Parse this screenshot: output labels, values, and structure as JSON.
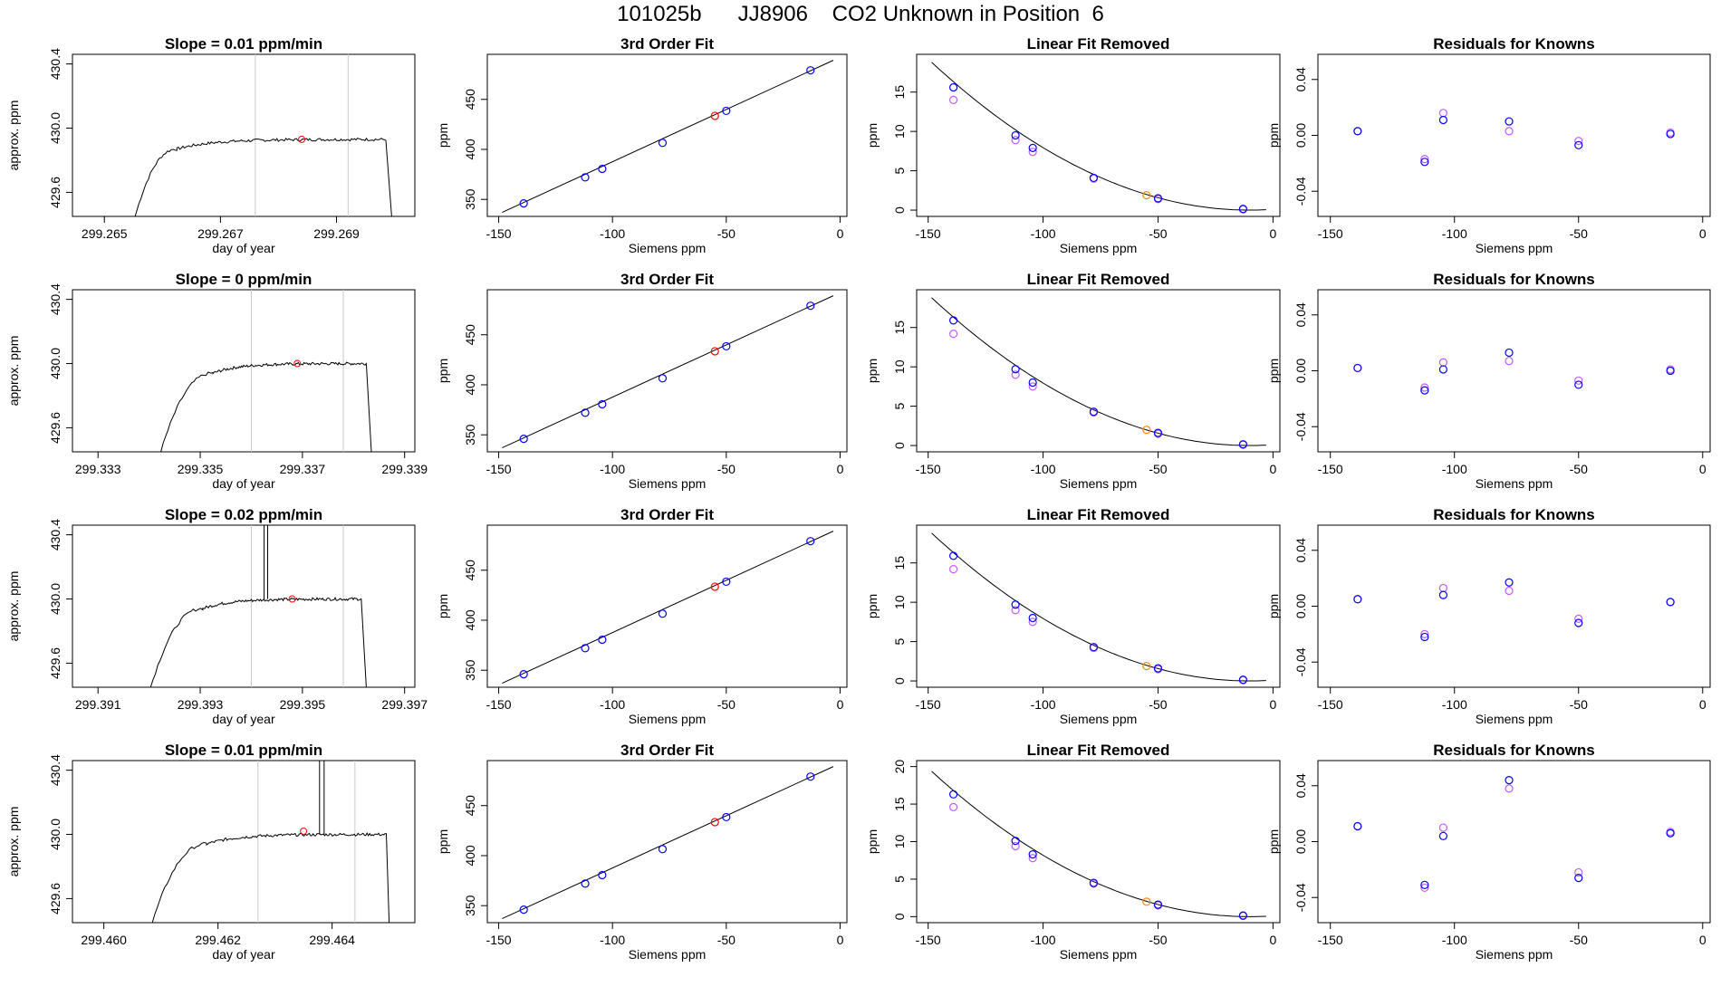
{
  "page_title": "101025b      JJ8906    CO2 Unknown in Position  6",
  "colors": {
    "line": "#000000",
    "grid": "#c8c8c8",
    "blue": "#0000ff",
    "violet": "#c45bff",
    "red": "#ff0000",
    "orange": "#ff8800"
  },
  "chart_data": [
    {
      "type": "line",
      "row": 0,
      "title": "Slope =  0.01  ppm/min",
      "xlabel": "day of year",
      "ylabel": "approx. ppm",
      "xlim": [
        299.26445,
        299.27035
      ],
      "ylim": [
        429.45,
        430.46
      ],
      "xticks": [
        299.265,
        299.267,
        299.269
      ],
      "xtick_labels": [
        "299.265",
        "299.267",
        "299.269"
      ],
      "yticks": [
        429.6,
        430.0,
        430.4
      ],
      "ytick_labels": [
        "429.6",
        "430.0",
        "430.4"
      ],
      "vlines": [
        299.2676,
        299.2692
      ],
      "rise": {
        "x0": 299.26553,
        "x1": 299.26625
      },
      "plateau": {
        "x0": 299.26625,
        "x1": 299.26985,
        "y": 429.93
      },
      "fall_x": 299.26995,
      "spikes": [],
      "marker": {
        "x": 299.2684,
        "y": 429.93
      }
    },
    {
      "type": "line",
      "row": 1,
      "title": "Slope =  0  ppm/min",
      "xlabel": "day of year",
      "ylabel": "approx. ppm",
      "xlim": [
        299.3325,
        299.3392
      ],
      "ylim": [
        429.45,
        430.46
      ],
      "xticks": [
        299.333,
        299.335,
        299.337,
        299.339
      ],
      "xtick_labels": [
        "299.333",
        "299.335",
        "299.337",
        "299.339"
      ],
      "vlines": [
        299.336,
        299.3378
      ],
      "yticks": [
        429.6,
        430.0,
        430.4
      ],
      "ytick_labels": [
        "429.6",
        "430.0",
        "430.4"
      ],
      "rise": {
        "x0": 299.33423,
        "x1": 299.33525
      },
      "plateau": {
        "x0": 299.33525,
        "x1": 299.33825,
        "y": 430.0
      },
      "fall_x": 299.33835,
      "spikes": [],
      "marker": {
        "x": 299.3369,
        "y": 430.0
      }
    },
    {
      "type": "line",
      "row": 2,
      "title": "Slope =  0.02  ppm/min",
      "xlabel": "day of year",
      "ylabel": "approx. ppm",
      "xlim": [
        299.3905,
        299.3972
      ],
      "ylim": [
        429.45,
        430.46
      ],
      "xticks": [
        299.391,
        299.393,
        299.395,
        299.397
      ],
      "xtick_labels": [
        "299.391",
        "299.393",
        "299.395",
        "299.397"
      ],
      "vlines": [
        299.394,
        299.3958
      ],
      "yticks": [
        429.6,
        430.0,
        430.4
      ],
      "ytick_labels": [
        "429.6",
        "430.0",
        "430.4"
      ],
      "rise": {
        "x0": 299.39203,
        "x1": 299.39305
      },
      "plateau": {
        "x0": 299.39305,
        "x1": 299.39615,
        "y": 430.0
      },
      "fall_x": 299.39625,
      "spikes": [
        299.39425,
        299.39432
      ],
      "marker": {
        "x": 299.3948,
        "y": 430.0
      }
    },
    {
      "type": "line",
      "row": 3,
      "title": "Slope =  0.01  ppm/min",
      "xlabel": "day of year",
      "ylabel": "approx. ppm",
      "xlim": [
        299.45945,
        299.46545
      ],
      "ylim": [
        429.45,
        430.46
      ],
      "xticks": [
        299.46,
        299.462,
        299.464
      ],
      "xtick_labels": [
        "299.460",
        "299.462",
        "299.464"
      ],
      "vlines": [
        299.4627,
        299.4644
      ],
      "yticks": [
        429.6,
        430.0,
        430.4
      ],
      "ytick_labels": [
        "429.6",
        "430.0",
        "430.4"
      ],
      "rise": {
        "x0": 299.46085,
        "x1": 299.4618
      },
      "plateau": {
        "x0": 299.4618,
        "x1": 299.46495,
        "y": 430.0
      },
      "fall_x": 299.465,
      "spikes": [
        299.46378,
        299.46386
      ],
      "marker": {
        "x": 299.4635,
        "y": 430.02
      }
    },
    {
      "type": "scatter",
      "row": 0,
      "title": "3rd Order Fit",
      "xlabel": "Siemens ppm",
      "ylabel": "ppm",
      "xlim": [
        -155,
        3
      ],
      "ylim": [
        333,
        495
      ],
      "xticks": [
        -150,
        -100,
        -50,
        0
      ],
      "xtick_labels": [
        "-150",
        "-100",
        "-50",
        "0"
      ],
      "yticks": [
        350,
        400,
        450
      ],
      "ytick_labels": [
        "350",
        "400",
        "450"
      ],
      "fit_line": [
        [
          -148.5,
          337
        ],
        [
          -3,
          489
        ]
      ],
      "points": [
        [
          -139,
          346
        ],
        [
          -112,
          372
        ],
        [
          -104.5,
          380.5
        ],
        [
          -78,
          406.5
        ],
        [
          -50,
          438.5
        ],
        [
          -13,
          479
        ]
      ],
      "unknown": [
        -55,
        433.5
      ]
    },
    {
      "type": "scatter",
      "row": 1,
      "title": "3rd Order Fit",
      "xlabel": "Siemens ppm",
      "ylabel": "ppm",
      "xlim": [
        -155,
        3
      ],
      "ylim": [
        333,
        495
      ],
      "xticks": [
        -150,
        -100,
        -50,
        0
      ],
      "xtick_labels": [
        "-150",
        "-100",
        "-50",
        "0"
      ],
      "yticks": [
        350,
        400,
        450
      ],
      "ytick_labels": [
        "350",
        "400",
        "450"
      ],
      "fit_line": [
        [
          -148.5,
          337
        ],
        [
          -3,
          489
        ]
      ],
      "points": [
        [
          -139,
          346
        ],
        [
          -112,
          372
        ],
        [
          -104.5,
          380.5
        ],
        [
          -78,
          406.5
        ],
        [
          -50,
          438.5
        ],
        [
          -13,
          479
        ]
      ],
      "unknown": [
        -55,
        433.5
      ]
    },
    {
      "type": "scatter",
      "row": 2,
      "title": "3rd Order Fit",
      "xlabel": "Siemens ppm",
      "ylabel": "ppm",
      "xlim": [
        -155,
        3
      ],
      "ylim": [
        333,
        495
      ],
      "xticks": [
        -150,
        -100,
        -50,
        0
      ],
      "xtick_labels": [
        "-150",
        "-100",
        "-50",
        "0"
      ],
      "yticks": [
        350,
        400,
        450
      ],
      "ytick_labels": [
        "350",
        "400",
        "450"
      ],
      "fit_line": [
        [
          -148.5,
          337
        ],
        [
          -3,
          489
        ]
      ],
      "points": [
        [
          -139,
          346
        ],
        [
          -112,
          372
        ],
        [
          -104.5,
          380.5
        ],
        [
          -78,
          406.5
        ],
        [
          -50,
          438.5
        ],
        [
          -13,
          479
        ]
      ],
      "unknown": [
        -55,
        433.5
      ]
    },
    {
      "type": "scatter",
      "row": 3,
      "title": "3rd Order Fit",
      "xlabel": "Siemens ppm",
      "ylabel": "ppm",
      "xlim": [
        -155,
        3
      ],
      "ylim": [
        333,
        495
      ],
      "xticks": [
        -150,
        -100,
        -50,
        0
      ],
      "xtick_labels": [
        "-150",
        "-100",
        "-50",
        "0"
      ],
      "yticks": [
        350,
        400,
        450
      ],
      "ytick_labels": [
        "350",
        "400",
        "450"
      ],
      "fit_line": [
        [
          -148.5,
          337
        ],
        [
          -3,
          489
        ]
      ],
      "points": [
        [
          -139,
          346
        ],
        [
          -112,
          372
        ],
        [
          -104.5,
          380.5
        ],
        [
          -78,
          406.5
        ],
        [
          -50,
          438.5
        ],
        [
          -13,
          479
        ]
      ],
      "unknown": [
        -55,
        433.5
      ]
    },
    {
      "type": "scatter",
      "row": 0,
      "title": "Linear Fit Removed",
      "xlabel": "Siemens ppm",
      "ylabel": "ppm",
      "xlim": [
        -155,
        3
      ],
      "ylim": [
        -0.8,
        19.8
      ],
      "xticks": [
        -150,
        -100,
        -50,
        0
      ],
      "xtick_labels": [
        "-150",
        "-100",
        "-50",
        "0"
      ],
      "yticks": [
        0,
        5,
        10,
        15
      ],
      "ytick_labels": [
        "0",
        "5",
        "10",
        "15"
      ],
      "curve": {
        "x0": -148.5,
        "x1": -3,
        "vertex": -10,
        "a": 0.00098,
        "c": 0.0
      },
      "knowns_blue": [
        [
          -139,
          15.6
        ],
        [
          -112,
          9.5
        ],
        [
          -104.5,
          7.9
        ],
        [
          -78,
          4.1
        ],
        [
          -50,
          1.5
        ],
        [
          -13,
          0.15
        ]
      ],
      "knowns_violet": [
        [
          -139,
          14.0
        ],
        [
          -112,
          8.9
        ],
        [
          -104.5,
          7.4
        ],
        [
          -78,
          4.0
        ],
        [
          -50,
          1.4
        ],
        [
          -13,
          0.1
        ]
      ],
      "unknown": [
        -55,
        1.9
      ]
    },
    {
      "type": "scatter",
      "row": 1,
      "title": "Linear Fit Removed",
      "xlabel": "Siemens ppm",
      "ylabel": "ppm",
      "xlim": [
        -155,
        3
      ],
      "ylim": [
        -0.8,
        19.8
      ],
      "xticks": [
        -150,
        -100,
        -50,
        0
      ],
      "xtick_labels": [
        "-150",
        "-100",
        "-50",
        "0"
      ],
      "yticks": [
        0,
        5,
        10,
        15
      ],
      "ytick_labels": [
        "0",
        "5",
        "10",
        "15"
      ],
      "curve": {
        "x0": -148.5,
        "x1": -3,
        "vertex": -10,
        "a": 0.00098,
        "c": 0.0
      },
      "knowns_blue": [
        [
          -139,
          15.9
        ],
        [
          -112,
          9.7
        ],
        [
          -104.5,
          8.0
        ],
        [
          -78,
          4.3
        ],
        [
          -50,
          1.6
        ],
        [
          -13,
          0.15
        ]
      ],
      "knowns_violet": [
        [
          -139,
          14.2
        ],
        [
          -112,
          9.0
        ],
        [
          -104.5,
          7.5
        ],
        [
          -78,
          4.2
        ],
        [
          -50,
          1.5
        ],
        [
          -13,
          0.1
        ]
      ],
      "unknown": [
        -55,
        2.0
      ]
    },
    {
      "type": "scatter",
      "row": 2,
      "title": "Linear Fit Removed",
      "xlabel": "Siemens ppm",
      "ylabel": "ppm",
      "xlim": [
        -155,
        3
      ],
      "ylim": [
        -0.8,
        19.8
      ],
      "xticks": [
        -150,
        -100,
        -50,
        0
      ],
      "xtick_labels": [
        "-150",
        "-100",
        "-50",
        "0"
      ],
      "yticks": [
        0,
        5,
        10,
        15
      ],
      "ytick_labels": [
        "0",
        "5",
        "10",
        "15"
      ],
      "curve": {
        "x0": -148.5,
        "x1": -3,
        "vertex": -10,
        "a": 0.00098,
        "c": 0.0
      },
      "knowns_blue": [
        [
          -139,
          15.9
        ],
        [
          -112,
          9.7
        ],
        [
          -104.5,
          8.0
        ],
        [
          -78,
          4.3
        ],
        [
          -50,
          1.6
        ],
        [
          -13,
          0.15
        ]
      ],
      "knowns_violet": [
        [
          -139,
          14.2
        ],
        [
          -112,
          9.0
        ],
        [
          -104.5,
          7.5
        ],
        [
          -78,
          4.2
        ],
        [
          -50,
          1.5
        ],
        [
          -13,
          0.1
        ]
      ],
      "unknown": [
        -55,
        1.9
      ]
    },
    {
      "type": "scatter",
      "row": 3,
      "title": "Linear Fit Removed",
      "xlabel": "Siemens ppm",
      "ylabel": "ppm",
      "xlim": [
        -155,
        3
      ],
      "ylim": [
        -0.8,
        20.8
      ],
      "xticks": [
        -150,
        -100,
        -50,
        0
      ],
      "xtick_labels": [
        "-150",
        "-100",
        "-50",
        "0"
      ],
      "yticks": [
        0,
        5,
        10,
        15,
        20
      ],
      "ytick_labels": [
        "0",
        "5",
        "10",
        "15",
        "20"
      ],
      "curve": {
        "x0": -148.5,
        "x1": -3,
        "vertex": -10,
        "a": 0.00101,
        "c": 0.0
      },
      "knowns_blue": [
        [
          -139,
          16.3
        ],
        [
          -112,
          10.1
        ],
        [
          -104.5,
          8.3
        ],
        [
          -78,
          4.5
        ],
        [
          -50,
          1.6
        ],
        [
          -13,
          0.15
        ]
      ],
      "knowns_violet": [
        [
          -139,
          14.6
        ],
        [
          -112,
          9.4
        ],
        [
          -104.5,
          7.8
        ],
        [
          -78,
          4.4
        ],
        [
          -50,
          1.5
        ],
        [
          -13,
          0.1
        ]
      ],
      "unknown": [
        -55,
        2.0
      ]
    },
    {
      "type": "scatter",
      "row": 0,
      "title": "Residuals for Knowns",
      "xlabel": "Siemens ppm",
      "ylabel": "ppm",
      "xlim": [
        -155,
        3
      ],
      "ylim": [
        -0.058,
        0.058
      ],
      "xticks": [
        -150,
        -100,
        -50,
        0
      ],
      "xtick_labels": [
        "-150",
        "-100",
        "-50",
        "0"
      ],
      "yticks": [
        -0.04,
        0.0,
        0.04
      ],
      "ytick_labels": [
        "-0.04",
        "0.00",
        "0.04"
      ],
      "knowns_blue": [
        [
          -139,
          0.003
        ],
        [
          -112,
          -0.019
        ],
        [
          -104.5,
          0.011
        ],
        [
          -78,
          0.01
        ],
        [
          -50,
          -0.007
        ],
        [
          -13,
          0.001
        ]
      ],
      "knowns_violet": [
        [
          -139,
          0.003
        ],
        [
          -112,
          -0.017
        ],
        [
          -104.5,
          0.016
        ],
        [
          -78,
          0.003
        ],
        [
          -50,
          -0.004
        ],
        [
          -13,
          0.002
        ]
      ]
    },
    {
      "type": "scatter",
      "row": 1,
      "title": "Residuals for Knowns",
      "xlabel": "Siemens ppm",
      "ylabel": "ppm",
      "xlim": [
        -155,
        3
      ],
      "ylim": [
        -0.058,
        0.058
      ],
      "xticks": [
        -150,
        -100,
        -50,
        0
      ],
      "xtick_labels": [
        "-150",
        "-100",
        "-50",
        "0"
      ],
      "yticks": [
        -0.04,
        0.0,
        0.04
      ],
      "ytick_labels": [
        "-0.04",
        "0.00",
        "0.04"
      ],
      "knowns_blue": [
        [
          -139,
          0.002
        ],
        [
          -112,
          -0.014
        ],
        [
          -104.5,
          0.001
        ],
        [
          -78,
          0.013
        ],
        [
          -50,
          -0.01
        ],
        [
          -13,
          0.0
        ]
      ],
      "knowns_violet": [
        [
          -139,
          0.002
        ],
        [
          -112,
          -0.012
        ],
        [
          -104.5,
          0.006
        ],
        [
          -78,
          0.007
        ],
        [
          -50,
          -0.007
        ],
        [
          -13,
          0.001
        ]
      ]
    },
    {
      "type": "scatter",
      "row": 2,
      "title": "Residuals for Knowns",
      "xlabel": "Siemens ppm",
      "ylabel": "ppm",
      "xlim": [
        -155,
        3
      ],
      "ylim": [
        -0.058,
        0.058
      ],
      "xticks": [
        -150,
        -100,
        -50,
        0
      ],
      "xtick_labels": [
        "-150",
        "-100",
        "-50",
        "0"
      ],
      "yticks": [
        -0.04,
        0.0,
        0.04
      ],
      "ytick_labels": [
        "-0.04",
        "0.00",
        "0.04"
      ],
      "knowns_blue": [
        [
          -139,
          0.005
        ],
        [
          -112,
          -0.022
        ],
        [
          -104.5,
          0.008
        ],
        [
          -78,
          0.017
        ],
        [
          -50,
          -0.012
        ],
        [
          -13,
          0.003
        ]
      ],
      "knowns_violet": [
        [
          -139,
          0.005
        ],
        [
          -112,
          -0.02
        ],
        [
          -104.5,
          0.013
        ],
        [
          -78,
          0.011
        ],
        [
          -50,
          -0.009
        ],
        [
          -13,
          0.003
        ]
      ]
    },
    {
      "type": "scatter",
      "row": 3,
      "title": "Residuals for Knowns",
      "xlabel": "Siemens ppm",
      "ylabel": "ppm",
      "xlim": [
        -155,
        3
      ],
      "ylim": [
        -0.058,
        0.058
      ],
      "xticks": [
        -150,
        -100,
        -50,
        0
      ],
      "xtick_labels": [
        "-150",
        "-100",
        "-50",
        "0"
      ],
      "yticks": [
        -0.04,
        0.0,
        0.04
      ],
      "ytick_labels": [
        "-0.04",
        "0.00",
        "0.04"
      ],
      "knowns_blue": [
        [
          -139,
          0.011
        ],
        [
          -112,
          -0.031
        ],
        [
          -104.5,
          0.004
        ],
        [
          -78,
          0.044
        ],
        [
          -50,
          -0.026
        ],
        [
          -13,
          0.006
        ]
      ],
      "knowns_violet": [
        [
          -139,
          0.011
        ],
        [
          -112,
          -0.033
        ],
        [
          -104.5,
          0.01
        ],
        [
          -78,
          0.038
        ],
        [
          -50,
          -0.022
        ],
        [
          -13,
          0.007
        ]
      ]
    }
  ]
}
